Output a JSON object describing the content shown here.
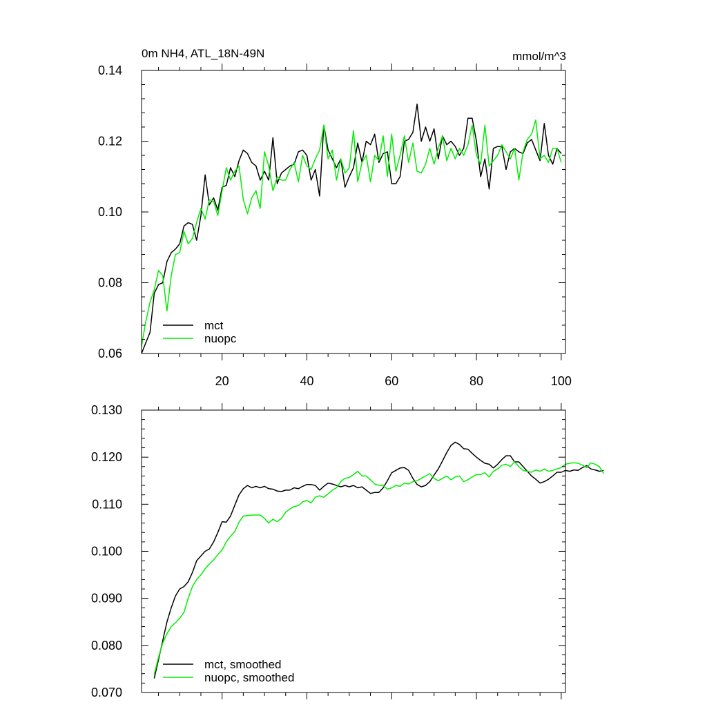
{
  "chart_data": [
    {
      "type": "line",
      "title": "0m NH4, ATL_18N-49N",
      "units": "mmol/m^3",
      "xlim": [
        1,
        101
      ],
      "ylim": [
        0.06,
        0.14
      ],
      "xticks": [
        20,
        40,
        60,
        80,
        100
      ],
      "yticks": [
        0.06,
        0.08,
        0.1,
        0.12,
        0.14
      ],
      "ytick_labels": [
        "0.06",
        "0.08",
        "0.10",
        "0.12",
        "0.14"
      ],
      "xtick_labels": [
        "20",
        "40",
        "60",
        "80",
        "100"
      ],
      "legend": "bottom-left",
      "x_start": 1,
      "series": [
        {
          "name": "mct",
          "color": "#000000",
          "values": [
            0.06,
            0.063,
            0.066,
            0.077,
            0.0795,
            0.08,
            0.086,
            0.0885,
            0.0895,
            0.091,
            0.096,
            0.097,
            0.0965,
            0.092,
            0.099,
            0.1105,
            0.102,
            0.104,
            0.1005,
            0.107,
            0.1075,
            0.1125,
            0.11,
            0.1145,
            0.1175,
            0.1165,
            0.114,
            0.113,
            0.109,
            0.1115,
            0.109,
            0.121,
            0.108,
            0.111,
            0.112,
            0.113,
            0.1135,
            0.117,
            0.1175,
            0.116,
            0.109,
            0.112,
            0.1045,
            0.1245,
            0.1175,
            0.115,
            0.1125,
            0.115,
            0.107,
            0.11,
            0.1125,
            0.1195,
            0.114,
            0.12,
            0.119,
            0.122,
            0.114,
            0.1165,
            0.117,
            0.108,
            0.108,
            0.11,
            0.12,
            0.1205,
            0.1225,
            0.1305,
            0.12,
            0.124,
            0.12,
            0.1235,
            0.115,
            0.1215,
            0.119,
            0.12,
            0.1185,
            0.116,
            0.118,
            0.1265,
            0.1265,
            0.12,
            0.11,
            0.115,
            0.1065,
            0.118,
            0.1185,
            0.1185,
            0.112,
            0.117,
            0.118,
            0.117,
            0.1165,
            0.1195,
            0.1205,
            0.1175,
            0.1145,
            0.125,
            0.116,
            0.1135,
            0.118,
            0.1165
          ]
        },
        {
          "name": "nuopc",
          "color": "#00ee00",
          "values": [
            0.062,
            0.069,
            0.0745,
            0.078,
            0.0835,
            0.082,
            0.072,
            0.082,
            0.088,
            0.0885,
            0.0945,
            0.091,
            0.0925,
            0.097,
            0.101,
            0.098,
            0.1035,
            0.103,
            0.099,
            0.106,
            0.1125,
            0.109,
            0.1115,
            0.113,
            0.1035,
            0.0995,
            0.104,
            0.106,
            0.101,
            0.117,
            0.113,
            0.106,
            0.11,
            0.109,
            0.109,
            0.112,
            0.114,
            0.1085,
            0.116,
            0.113,
            0.112,
            0.115,
            0.1175,
            0.1245,
            0.115,
            0.1175,
            0.109,
            0.115,
            0.111,
            0.1125,
            0.123,
            0.1085,
            0.114,
            0.116,
            0.1085,
            0.116,
            0.1145,
            0.1215,
            0.11,
            0.122,
            0.1115,
            0.116,
            0.1215,
            0.114,
            0.1195,
            0.1115,
            0.111,
            0.1135,
            0.118,
            0.1135,
            0.118,
            0.1215,
            0.1145,
            0.118,
            0.115,
            0.118,
            0.116,
            0.119,
            0.1245,
            0.116,
            0.1135,
            0.1245,
            0.113,
            0.1145,
            0.116,
            0.119,
            0.117,
            0.115,
            0.118,
            0.109,
            0.117,
            0.1205,
            0.122,
            0.126,
            0.115,
            0.116,
            0.114,
            0.118,
            0.118,
            0.114
          ]
        }
      ]
    },
    {
      "type": "line",
      "xlim": [
        1,
        101
      ],
      "ylim": [
        0.07,
        0.13
      ],
      "xticks": [
        20,
        40,
        60,
        80,
        100
      ],
      "yticks": [
        0.07,
        0.08,
        0.09,
        0.1,
        0.11,
        0.12,
        0.13
      ],
      "ytick_labels": [
        "0.070",
        "0.080",
        "0.090",
        "0.100",
        "0.110",
        "0.120",
        "0.130"
      ],
      "legend": "bottom-left",
      "x_start": 4,
      "series": [
        {
          "name": "mct, smoothed",
          "color": "#000000",
          "values": [
            0.073,
            0.077,
            0.081,
            0.085,
            0.088,
            0.0905,
            0.092,
            0.0925,
            0.0935,
            0.0955,
            0.098,
            0.099,
            0.1,
            0.1005,
            0.102,
            0.104,
            0.1063,
            0.1062,
            0.1075,
            0.1098,
            0.112,
            0.1133,
            0.114,
            0.1135,
            0.1138,
            0.1135,
            0.1138,
            0.1133,
            0.1132,
            0.1128,
            0.1127,
            0.113,
            0.113,
            0.1135,
            0.1133,
            0.1138,
            0.1142,
            0.1142,
            0.114,
            0.113,
            0.1138,
            0.1145,
            0.1143,
            0.114,
            0.1137,
            0.114,
            0.1137,
            0.114,
            0.1135,
            0.1137,
            0.113,
            0.1123,
            0.1125,
            0.1125,
            0.1135,
            0.115,
            0.1167,
            0.1172,
            0.1177,
            0.1178,
            0.1172,
            0.1155,
            0.1142,
            0.1137,
            0.114,
            0.1148,
            0.1162,
            0.1175,
            0.1192,
            0.121,
            0.1225,
            0.1232,
            0.1227,
            0.1218,
            0.1217,
            0.1208,
            0.12,
            0.1193,
            0.1187,
            0.1185,
            0.1177,
            0.1185,
            0.1195,
            0.1203,
            0.1203,
            0.119,
            0.119,
            0.118,
            0.117,
            0.116,
            0.1153,
            0.1145,
            0.1148,
            0.1153,
            0.116,
            0.1168,
            0.1168,
            0.1172,
            0.117,
            0.1173,
            0.1172,
            0.1178,
            0.1182,
            0.1175,
            0.1173,
            0.117,
            0.1172
          ]
        },
        {
          "name": "nuopc, smoothed",
          "color": "#00ee00",
          "values": [
            0.0738,
            0.0775,
            0.0805,
            0.0825,
            0.084,
            0.0848,
            0.0858,
            0.087,
            0.09,
            0.0925,
            0.094,
            0.095,
            0.0963,
            0.0973,
            0.0982,
            0.0993,
            0.1003,
            0.102,
            0.1032,
            0.1042,
            0.1062,
            0.1075,
            0.1076,
            0.1077,
            0.1077,
            0.1077,
            0.107,
            0.106,
            0.1068,
            0.1063,
            0.107,
            0.1083,
            0.109,
            0.1095,
            0.1097,
            0.1105,
            0.1108,
            0.1103,
            0.1115,
            0.1118,
            0.1115,
            0.1122,
            0.113,
            0.1135,
            0.1148,
            0.1155,
            0.1157,
            0.1163,
            0.117,
            0.116,
            0.116,
            0.1152,
            0.1143,
            0.114,
            0.114,
            0.1132,
            0.1135,
            0.114,
            0.1138,
            0.1145,
            0.1143,
            0.1148,
            0.115,
            0.1155,
            0.116,
            0.1165,
            0.1155,
            0.115,
            0.1155,
            0.116,
            0.1152,
            0.1158,
            0.116,
            0.1148,
            0.1152,
            0.1158,
            0.1163,
            0.1163,
            0.1167,
            0.1158,
            0.117,
            0.1175,
            0.1183,
            0.1185,
            0.118,
            0.119,
            0.118,
            0.1172,
            0.117,
            0.1168,
            0.1173,
            0.117,
            0.1175,
            0.117,
            0.1172,
            0.1175,
            0.1178,
            0.1185,
            0.1187,
            0.1188,
            0.1187,
            0.1183,
            0.1178,
            0.1188,
            0.1185,
            0.118,
            0.1165
          ]
        }
      ]
    }
  ]
}
